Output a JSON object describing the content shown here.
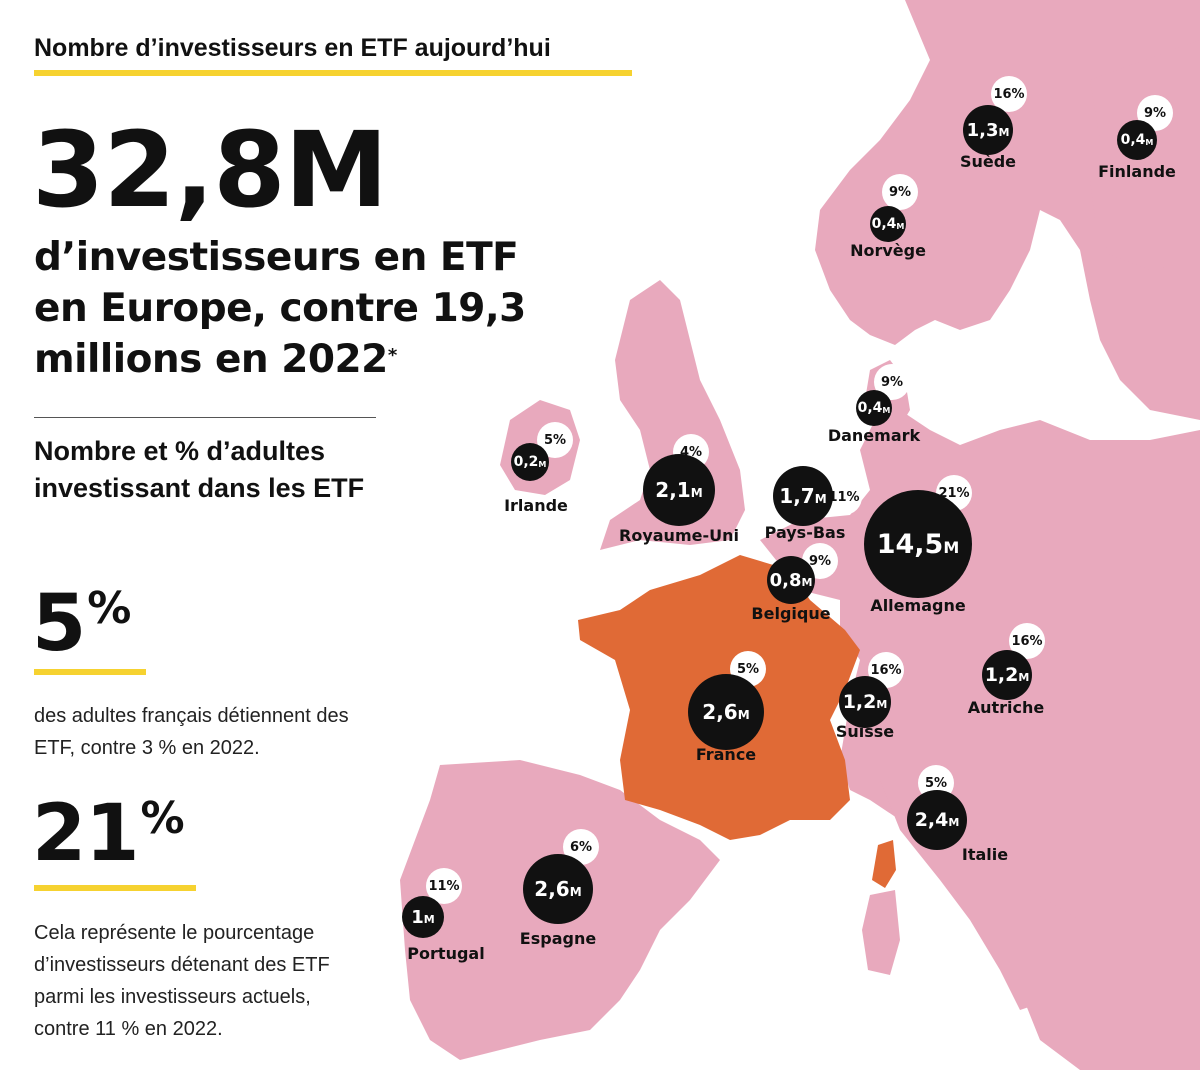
{
  "header": {
    "title": "Nombre d’investisseurs en ETF aujourd’hui"
  },
  "headline": {
    "value": "32,8M",
    "subtitle_main": "d’investisseurs en ETF en Europe, contre 19,3 millions en 2022",
    "subtitle_mark": "*"
  },
  "section": {
    "title": "Nombre et % d’adultes investissant dans les ETF"
  },
  "stats": [
    {
      "value": "5",
      "unit": "%",
      "text": "des adultes français détiennent des ETF, contre 3 % en 2022."
    },
    {
      "value": "21",
      "unit": "%",
      "text": "Cela représente le pourcentage d’investisseurs détenant des ETF parmi les investisseurs actuels, contre 11 % en 2022."
    }
  ],
  "colors": {
    "land": "#e8a9bd",
    "highlight_country": "#e06a36",
    "accent_underline": "#f6d230",
    "bubble": "#111111"
  },
  "countries": [
    {
      "name": "Suède",
      "investors": "1,3",
      "unit": "M",
      "share": "16%"
    },
    {
      "name": "Finlande",
      "investors": "0,4",
      "unit": "M",
      "share": "9%"
    },
    {
      "name": "Norvège",
      "investors": "0,4",
      "unit": "M",
      "share": "9%"
    },
    {
      "name": "Danemark",
      "investors": "0,4",
      "unit": "M",
      "share": "9%"
    },
    {
      "name": "Irlande",
      "investors": "0,2",
      "unit": "M",
      "share": "5%"
    },
    {
      "name": "Royaume-Uni",
      "investors": "2,1",
      "unit": "M",
      "share": "4%"
    },
    {
      "name": "Pays-Bas",
      "investors": "1,7",
      "unit": "M",
      "share": "11%"
    },
    {
      "name": "Allemagne",
      "investors": "14,5",
      "unit": "M",
      "share": "21%"
    },
    {
      "name": "Belgique",
      "investors": "0,8",
      "unit": "M",
      "share": "9%"
    },
    {
      "name": "France",
      "investors": "2,6",
      "unit": "M",
      "share": "5%"
    },
    {
      "name": "Suisse",
      "investors": "1,2",
      "unit": "M",
      "share": "16%"
    },
    {
      "name": "Autriche",
      "investors": "1,2",
      "unit": "M",
      "share": "16%"
    },
    {
      "name": "Italie",
      "investors": "2,4",
      "unit": "M",
      "share": "5%"
    },
    {
      "name": "Espagne",
      "investors": "2,6",
      "unit": "M",
      "share": "6%"
    },
    {
      "name": "Portugal",
      "investors": "1",
      "unit": "M",
      "share": "11%"
    }
  ]
}
